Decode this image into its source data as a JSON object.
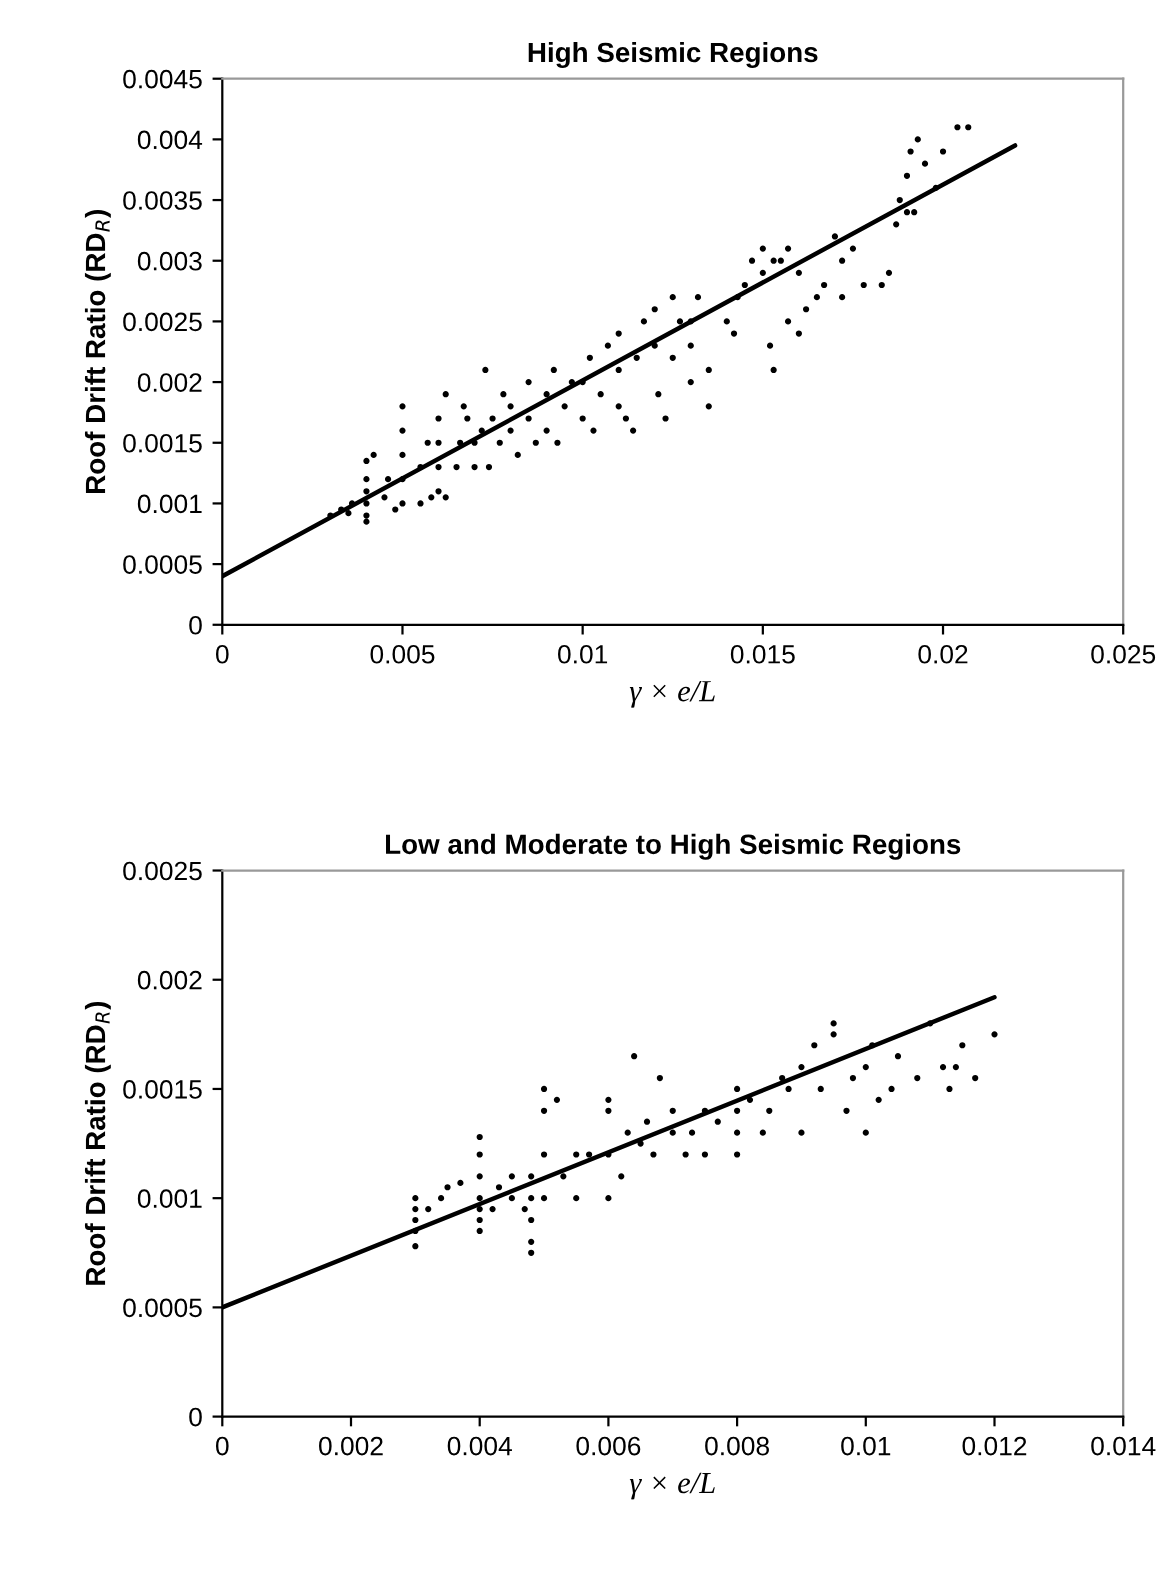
{
  "chart_data": [
    {
      "type": "scatter",
      "title": "High Seismic Regions",
      "xlabel": "γ × e/L",
      "ylabel": "Roof Drift Ratio (RD$_{R}$)",
      "xlim": [
        0,
        0.025
      ],
      "xticks": [
        0,
        0.005,
        0.01,
        0.015,
        0.02,
        0.025
      ],
      "ylim": [
        0,
        0.0045
      ],
      "yticks": [
        0,
        0.0005,
        0.001,
        0.0015,
        0.002,
        0.0025,
        0.003,
        0.0035,
        0.004,
        0.0045
      ],
      "grid": false,
      "legend": false,
      "series": [
        {
          "marker": "circle",
          "color": "#000000",
          "x": [
            0.003,
            0.0033,
            0.0036,
            0.0035,
            0.004,
            0.004,
            0.004,
            0.004,
            0.004,
            0.004,
            0.0042,
            0.0045,
            0.0046,
            0.0048,
            0.005,
            0.005,
            0.005,
            0.005,
            0.005,
            0.0055,
            0.0055,
            0.0057,
            0.0058,
            0.006,
            0.006,
            0.006,
            0.006,
            0.0062,
            0.0062,
            0.0065,
            0.0066,
            0.0068,
            0.0067,
            0.007,
            0.007,
            0.0072,
            0.0073,
            0.0074,
            0.0075,
            0.0077,
            0.0078,
            0.008,
            0.008,
            0.0082,
            0.0085,
            0.0085,
            0.0087,
            0.009,
            0.009,
            0.0092,
            0.0093,
            0.0095,
            0.0097,
            0.01,
            0.01,
            0.0102,
            0.0103,
            0.0105,
            0.0107,
            0.011,
            0.011,
            0.011,
            0.0112,
            0.0114,
            0.0115,
            0.0117,
            0.012,
            0.012,
            0.0121,
            0.0123,
            0.0125,
            0.0125,
            0.0127,
            0.013,
            0.013,
            0.013,
            0.0132,
            0.0135,
            0.0135,
            0.014,
            0.0142,
            0.0143,
            0.0145,
            0.0147,
            0.015,
            0.015,
            0.0153,
            0.0155,
            0.0157,
            0.016,
            0.0152,
            0.0153,
            0.0157,
            0.016,
            0.0162,
            0.0165,
            0.0167,
            0.017,
            0.0172,
            0.0172,
            0.0175,
            0.0178,
            0.0183,
            0.0185,
            0.0187,
            0.019,
            0.0188,
            0.019,
            0.0191,
            0.0193,
            0.0195,
            0.0192,
            0.0198,
            0.02,
            0.0204,
            0.0207
          ],
          "values": [
            0.0009,
            0.00095,
            0.001,
            0.00092,
            0.00085,
            0.0009,
            0.001,
            0.0011,
            0.0012,
            0.00135,
            0.0014,
            0.00105,
            0.0012,
            0.00095,
            0.001,
            0.0012,
            0.0014,
            0.0016,
            0.0018,
            0.001,
            0.0013,
            0.0015,
            0.00105,
            0.0011,
            0.0013,
            0.0015,
            0.0017,
            0.0019,
            0.00105,
            0.0013,
            0.0015,
            0.0017,
            0.0018,
            0.0013,
            0.0015,
            0.0016,
            0.0021,
            0.0013,
            0.0017,
            0.0015,
            0.0019,
            0.0016,
            0.0018,
            0.0014,
            0.0017,
            0.002,
            0.0015,
            0.0019,
            0.0016,
            0.0021,
            0.0015,
            0.0018,
            0.002,
            0.0017,
            0.002,
            0.0022,
            0.0016,
            0.0019,
            0.0023,
            0.0021,
            0.0024,
            0.0018,
            0.0017,
            0.0016,
            0.0022,
            0.0025,
            0.0023,
            0.0026,
            0.0019,
            0.0017,
            0.0022,
            0.0027,
            0.0025,
            0.0023,
            0.0025,
            0.002,
            0.0027,
            0.0018,
            0.0021,
            0.0025,
            0.0024,
            0.0027,
            0.0028,
            0.003,
            0.0031,
            0.0029,
            0.003,
            0.003,
            0.0031,
            0.0029,
            0.0023,
            0.0021,
            0.0025,
            0.0024,
            0.0026,
            0.0027,
            0.0028,
            0.0032,
            0.003,
            0.0027,
            0.0031,
            0.0028,
            0.0028,
            0.0029,
            0.0033,
            0.0034,
            0.0035,
            0.0037,
            0.0039,
            0.004,
            0.0038,
            0.0034,
            0.0036,
            0.0039,
            0.0041,
            0.0041
          ]
        },
        {
          "type": "line",
          "marker": "none",
          "color": "#000000",
          "x": [
            0,
            0.022
          ],
          "values": [
            0.0004,
            0.00395
          ]
        }
      ]
    },
    {
      "type": "scatter",
      "title": "Low and Moderate to High Seismic Regions",
      "xlabel": "γ × e/L",
      "ylabel": "Roof Drift Ratio (RD$_{R}$)",
      "xlim": [
        0,
        0.014
      ],
      "xticks": [
        0,
        0.002,
        0.004,
        0.006,
        0.008,
        0.01,
        0.012,
        0.014
      ],
      "ylim": [
        0,
        0.0025
      ],
      "yticks": [
        0,
        0.0005,
        0.001,
        0.0015,
        0.002,
        0.0025
      ],
      "grid": false,
      "legend": false,
      "series": [
        {
          "marker": "circle",
          "color": "#000000",
          "x": [
            0.003,
            0.003,
            0.003,
            0.003,
            0.003,
            0.0032,
            0.0034,
            0.0035,
            0.0037,
            0.004,
            0.004,
            0.004,
            0.004,
            0.004,
            0.004,
            0.004,
            0.0042,
            0.0043,
            0.0045,
            0.0045,
            0.0047,
            0.0048,
            0.0048,
            0.0048,
            0.0048,
            0.0048,
            0.005,
            0.005,
            0.005,
            0.005,
            0.0052,
            0.0053,
            0.0055,
            0.0055,
            0.0057,
            0.006,
            0.006,
            0.006,
            0.006,
            0.0062,
            0.0063,
            0.0064,
            0.0065,
            0.0066,
            0.0067,
            0.0068,
            0.007,
            0.007,
            0.0072,
            0.0073,
            0.0075,
            0.0075,
            0.0077,
            0.008,
            0.008,
            0.008,
            0.008,
            0.0082,
            0.0084,
            0.0085,
            0.0087,
            0.0088,
            0.009,
            0.009,
            0.0092,
            0.0093,
            0.0095,
            0.0095,
            0.0097,
            0.0098,
            0.01,
            0.01,
            0.0101,
            0.0102,
            0.0104,
            0.0105,
            0.0108,
            0.011,
            0.0112,
            0.0113,
            0.0115,
            0.0114,
            0.0117,
            0.012
          ],
          "values": [
            0.00078,
            0.00085,
            0.0009,
            0.00095,
            0.001,
            0.00095,
            0.001,
            0.00105,
            0.00107,
            0.00085,
            0.0009,
            0.00095,
            0.001,
            0.0011,
            0.0012,
            0.00128,
            0.00095,
            0.00105,
            0.001,
            0.0011,
            0.00095,
            0.00075,
            0.0008,
            0.0009,
            0.001,
            0.0011,
            0.001,
            0.0012,
            0.0014,
            0.0015,
            0.00145,
            0.0011,
            0.0012,
            0.001,
            0.0012,
            0.001,
            0.0012,
            0.0014,
            0.00145,
            0.0011,
            0.0013,
            0.00165,
            0.00125,
            0.00135,
            0.0012,
            0.00155,
            0.0013,
            0.0014,
            0.0012,
            0.0013,
            0.0014,
            0.0012,
            0.00135,
            0.0012,
            0.0013,
            0.0014,
            0.0015,
            0.00145,
            0.0013,
            0.0014,
            0.00155,
            0.0015,
            0.0016,
            0.0013,
            0.0017,
            0.0015,
            0.00175,
            0.0018,
            0.0014,
            0.00155,
            0.0016,
            0.0013,
            0.0017,
            0.00145,
            0.0015,
            0.00165,
            0.00155,
            0.0018,
            0.0016,
            0.0015,
            0.0017,
            0.0016,
            0.00155,
            0.00175
          ]
        },
        {
          "type": "line",
          "marker": "none",
          "color": "#000000",
          "x": [
            0,
            0.012
          ],
          "values": [
            0.0005,
            0.00192
          ]
        }
      ]
    }
  ]
}
